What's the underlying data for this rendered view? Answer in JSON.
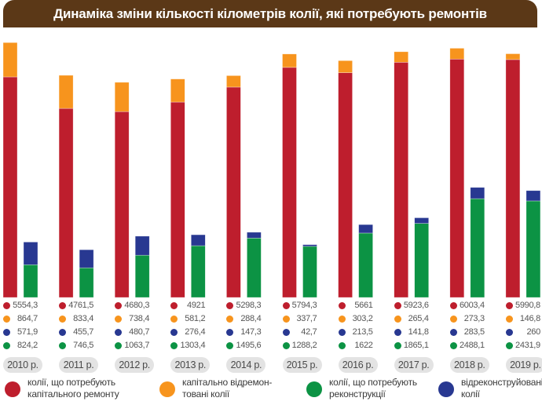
{
  "title": "Динаміка зміни кількості кілометрів колії, які потребують ремонтів",
  "colors": {
    "title_bg": "#5b3817",
    "capital_repair_needed": "#be1e2d",
    "capital_repaired": "#f7941d",
    "reconstruction_needed": "#0c9344",
    "reconstructed": "#283891"
  },
  "chart_data": {
    "type": "bar",
    "title": "Динаміка зміни кількості кілометрів колії, які потребують ремонтів",
    "xlabel": "",
    "ylabel": "",
    "grid": false,
    "legend_position": "bottom",
    "categories": [
      "2010 р.",
      "2011 р.",
      "2012 р.",
      "2013 р.",
      "2014 р.",
      "2015 р.",
      "2016 р.",
      "2017 р.",
      "2018 р.",
      "2019 р."
    ],
    "stacks": [
      {
        "name": "capital",
        "series": [
          "колії, що потребують капітального ремонту",
          "капітально відремонтовані колії"
        ]
      },
      {
        "name": "reconstruction",
        "series": [
          "колії, що потребують реконструкції",
          "відреконструйовані колії"
        ]
      }
    ],
    "series": [
      {
        "key": "capital_repair_needed",
        "name": "колії, що потребують капітального ремонту",
        "values": [
          5554.3,
          4761.5,
          4680.3,
          4921,
          5298.3,
          5794.3,
          5661,
          5923.6,
          6003.4,
          5990.8
        ],
        "labels": [
          "5554,3",
          "4761,5",
          "4680,3",
          "4921",
          "5298,3",
          "5794,3",
          "5661",
          "5923,6",
          "6003,4",
          "5990,8"
        ]
      },
      {
        "key": "capital_repaired",
        "name": "капітально відремонтовані колії",
        "values": [
          864.7,
          833.4,
          738.4,
          581.2,
          288.4,
          337.7,
          303.2,
          265.4,
          273.3,
          146.8
        ],
        "labels": [
          "864,7",
          "833,4",
          "738,4",
          "581,2",
          "288,4",
          "337,7",
          "303,2",
          "265,4",
          "273,3",
          "146,8"
        ]
      },
      {
        "key": "reconstructed",
        "name": "відреконструйовані колії",
        "values": [
          571.9,
          455.7,
          480.7,
          276.4,
          147.3,
          42.7,
          213.5,
          141.8,
          283.5,
          260
        ],
        "labels": [
          "571,9",
          "455,7",
          "480,7",
          "276,4",
          "147,3",
          "42,7",
          "213,5",
          "141,8",
          "283,5",
          "260"
        ]
      },
      {
        "key": "reconstruction_needed",
        "name": "колії, що потребують реконструкції",
        "values": [
          824.2,
          746.5,
          1063.7,
          1303.4,
          1495.6,
          1288.2,
          1622,
          1865.1,
          2488.1,
          2431.9
        ],
        "labels": [
          "824,2",
          "746,5",
          "1063,7",
          "1303,4",
          "1495,6",
          "1288,2",
          "1622",
          "1865,1",
          "2488,1",
          "2431,9"
        ]
      }
    ],
    "ylim": [
      0,
      6500
    ]
  },
  "legend": [
    {
      "key": "capital_repair_needed",
      "label": "колії, що потребують капітального ремонту"
    },
    {
      "key": "capital_repaired",
      "label": "капітально відремон-товані колії"
    },
    {
      "key": "reconstruction_needed",
      "label": "колії, що потребують реконструкції"
    },
    {
      "key": "reconstructed",
      "label": "відреконструйовані колії"
    }
  ]
}
